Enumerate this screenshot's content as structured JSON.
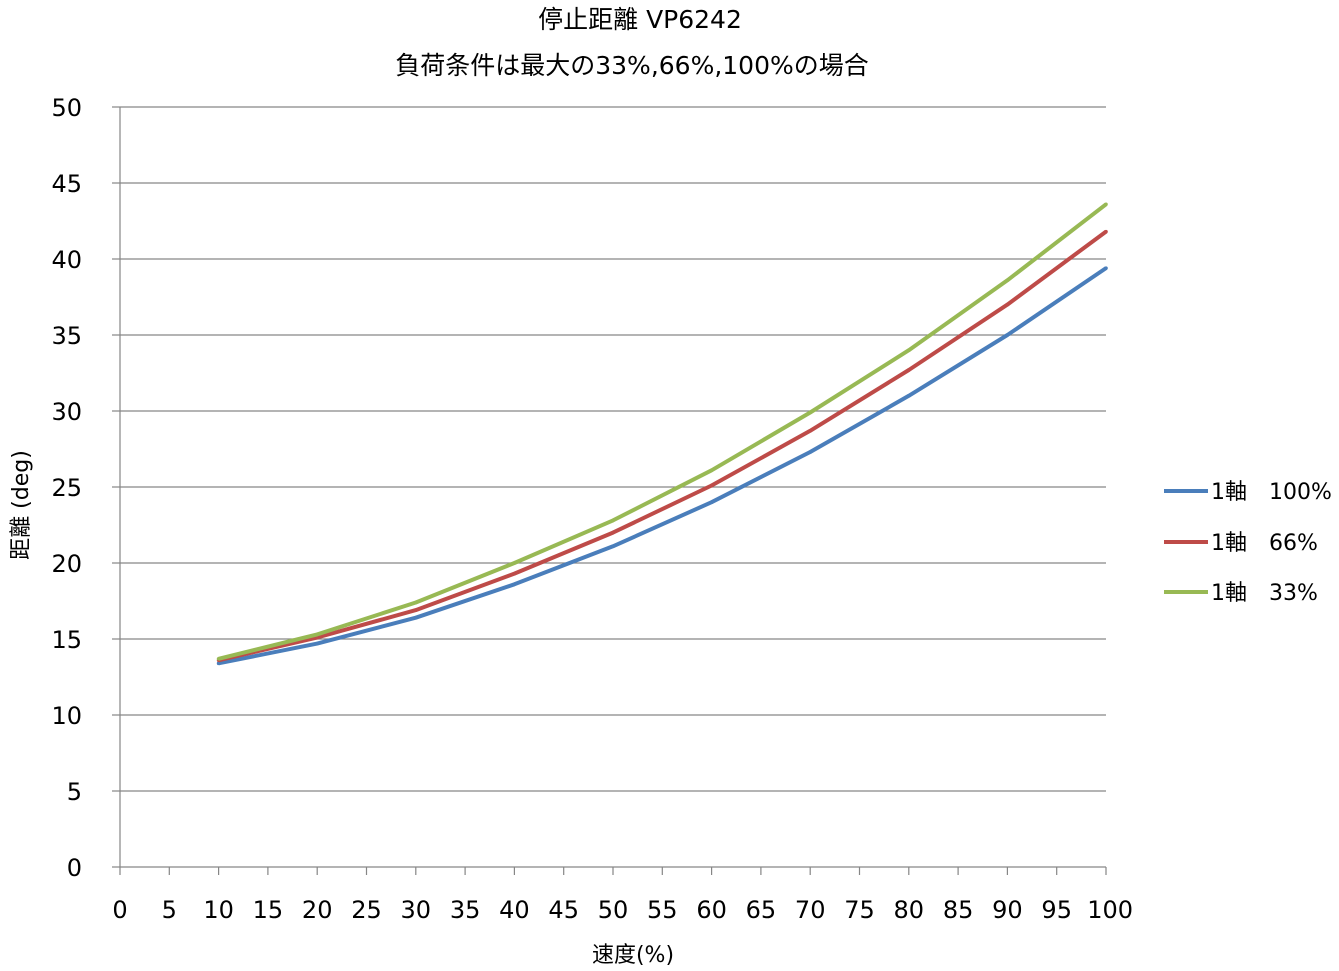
{
  "chart_data": {
    "type": "line",
    "title": "停止距離 VP6242",
    "subtitle": "負荷条件は最大の33%,66%,100%の場合",
    "xlabel": "速度(%)",
    "ylabel": "距離 (deg)",
    "xlim": [
      0,
      100
    ],
    "ylim": [
      0,
      50
    ],
    "x_ticks": [
      "0",
      "5",
      "10",
      "15",
      "20",
      "25",
      "30",
      "35",
      "40",
      "45",
      "50",
      "55",
      "60",
      "65",
      "70",
      "75",
      "80",
      "85",
      "90",
      "95",
      "100"
    ],
    "y_ticks": [
      "0",
      "5",
      "10",
      "15",
      "20",
      "25",
      "30",
      "35",
      "40",
      "45",
      "50"
    ],
    "grid": "horizontal",
    "legend_position": "right",
    "x": [
      10,
      20,
      30,
      40,
      50,
      60,
      70,
      80,
      90,
      100
    ],
    "series": [
      {
        "name": "1軸　100%",
        "color": "#4a7ebb",
        "values": [
          13.4,
          14.7,
          16.4,
          18.6,
          21.1,
          24.0,
          27.3,
          31.0,
          35.0,
          39.4
        ]
      },
      {
        "name": "1軸　66%",
        "color": "#be4b48",
        "values": [
          13.6,
          15.1,
          16.9,
          19.3,
          22.0,
          25.1,
          28.7,
          32.7,
          37.0,
          41.8
        ]
      },
      {
        "name": "1軸　33%",
        "color": "#98b954",
        "values": [
          13.7,
          15.3,
          17.4,
          20.0,
          22.8,
          26.1,
          29.9,
          34.0,
          38.6,
          43.6
        ]
      }
    ]
  }
}
